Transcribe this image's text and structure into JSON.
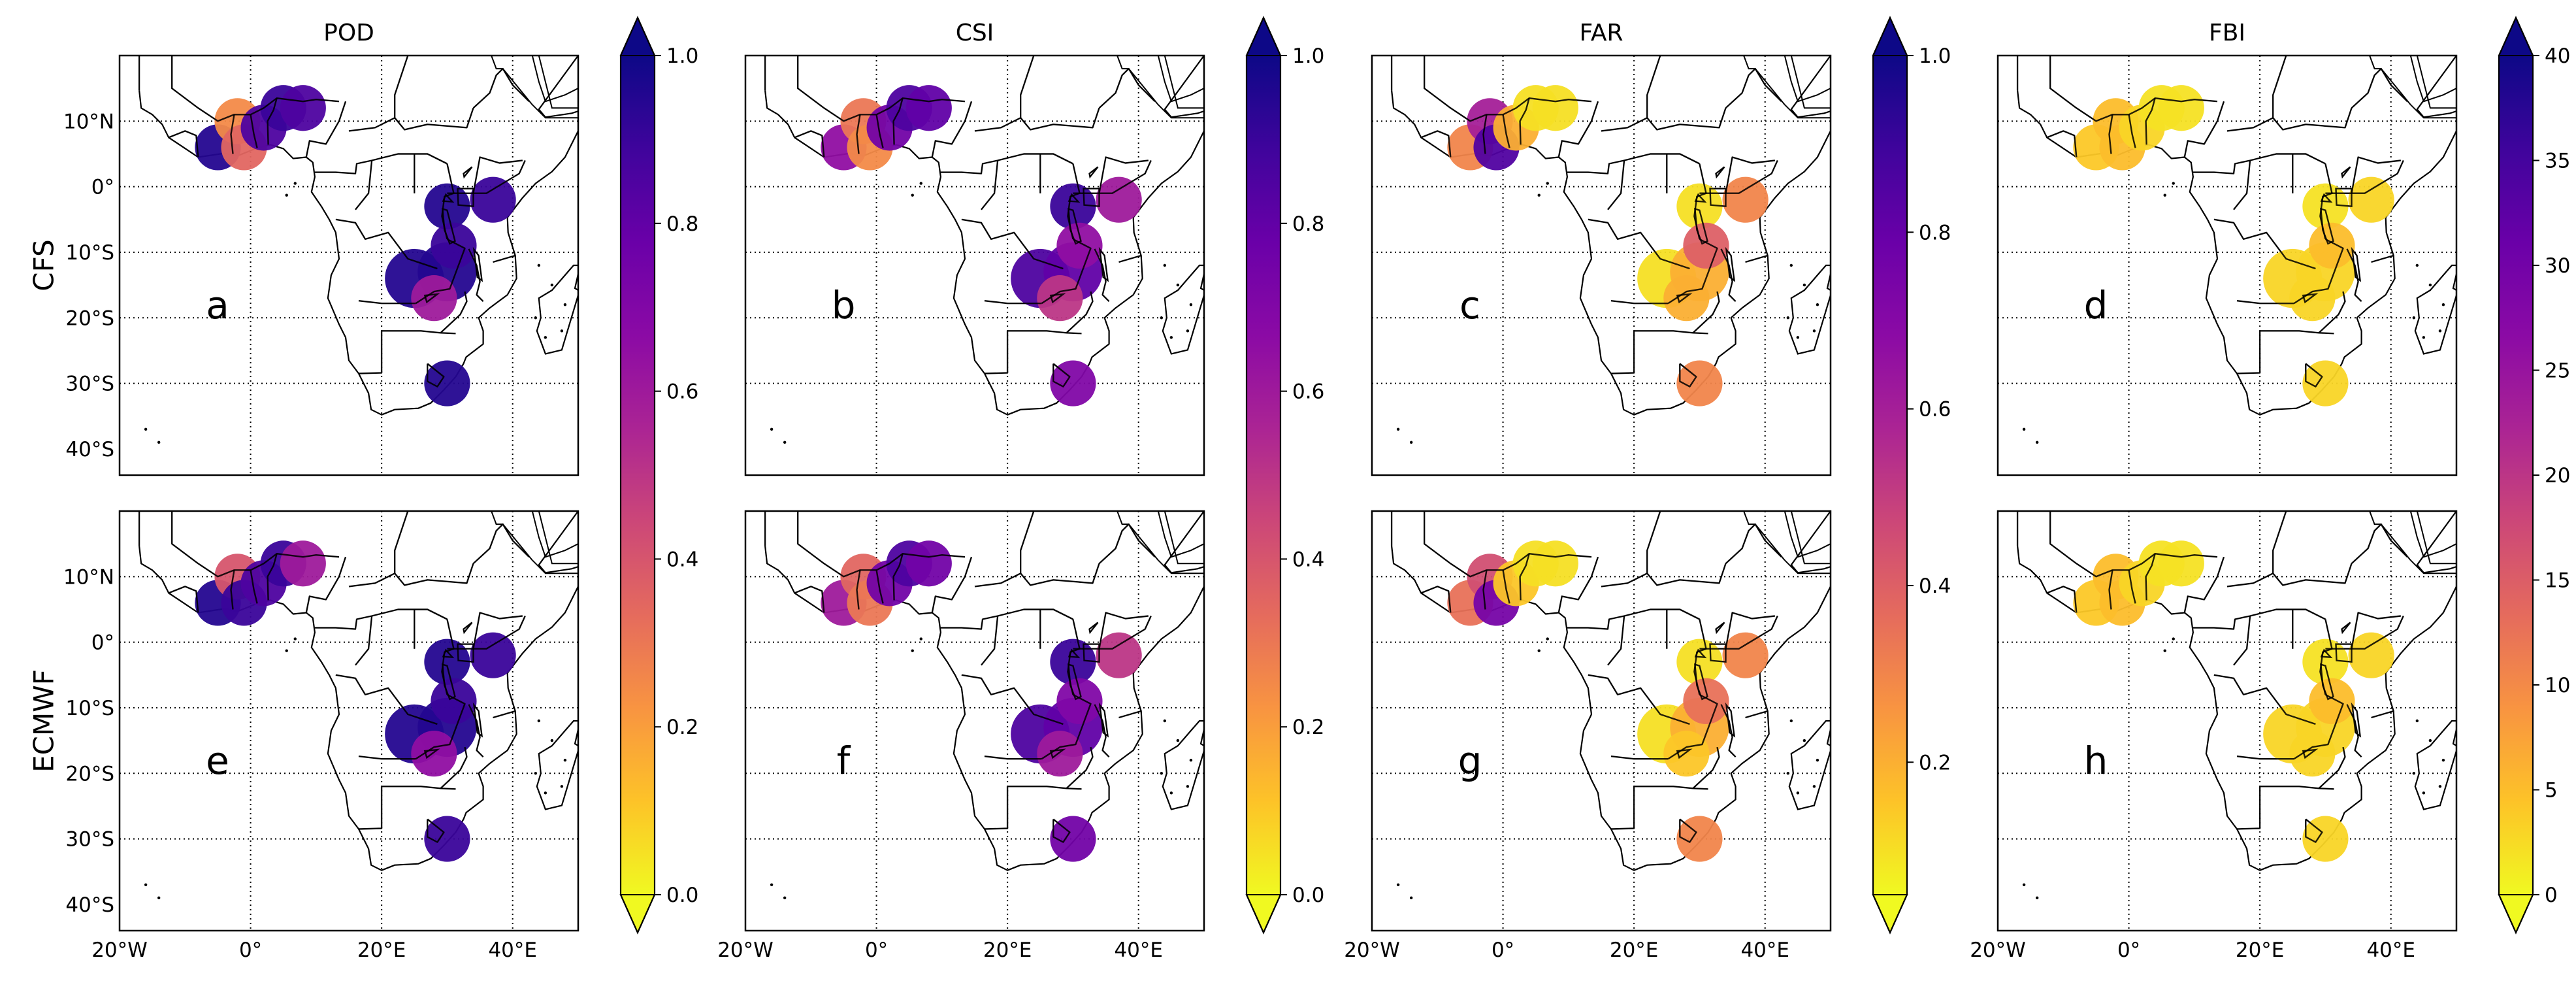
{
  "column_titles": [
    "POD",
    "CSI",
    "FAR",
    "FBI"
  ],
  "row_labels": [
    "CFS",
    "ECMWF"
  ],
  "panel_letters": [
    [
      "a",
      "b",
      "c",
      "d"
    ],
    [
      "e",
      "f",
      "g",
      "h"
    ]
  ],
  "lat_ticks": [
    "10°N",
    "0°",
    "10°S",
    "20°S",
    "30°S",
    "40°S"
  ],
  "lon_ticks": [
    "20°W",
    "0°",
    "20°E",
    "40°E"
  ],
  "colorbars": [
    {
      "ticks": [
        "1.0",
        "0.8",
        "0.6",
        "0.4",
        "0.2",
        "0.0"
      ],
      "vmin": 0,
      "vmax": 1
    },
    {
      "ticks": [
        "1.0",
        "0.8",
        "0.6",
        "0.4",
        "0.2",
        "0.0"
      ],
      "vmin": 0,
      "vmax": 1
    },
    {
      "ticks": [
        "1.0",
        "0.8",
        "0.6",
        "0.4",
        "0.2"
      ],
      "vmin": 0.05,
      "vmax": 1
    },
    {
      "ticks": [
        "40",
        "35",
        "30",
        "25",
        "20",
        "15",
        "10",
        "5",
        "0"
      ],
      "vmin": 0,
      "vmax": 40
    }
  ],
  "colormap": [
    "#f0f921",
    "#fdc328",
    "#f89441",
    "#e56b5d",
    "#cc4778",
    "#ab2494",
    "#8b0aa5",
    "#6a00a8",
    "#3f049c",
    "#0d0887"
  ],
  "sites": [
    {
      "lon": -5,
      "lat": 6,
      "r": 3.5
    },
    {
      "lon": -2,
      "lat": 10,
      "r": 3.5
    },
    {
      "lon": -1,
      "lat": 6,
      "r": 3.5
    },
    {
      "lon": 2,
      "lat": 9,
      "r": 3.5
    },
    {
      "lon": 5,
      "lat": 12,
      "r": 3.5
    },
    {
      "lon": 8,
      "lat": 12,
      "r": 3.5
    },
    {
      "lon": 30,
      "lat": -3,
      "r": 3.5
    },
    {
      "lon": 37,
      "lat": -2,
      "r": 3.5
    },
    {
      "lon": 25,
      "lat": -14,
      "r": 4.5
    },
    {
      "lon": 30,
      "lat": -13,
      "r": 4.5
    },
    {
      "lon": 31,
      "lat": -9,
      "r": 3.5
    },
    {
      "lon": 28,
      "lat": -17,
      "r": 3.5
    },
    {
      "lon": 30,
      "lat": -30,
      "r": 3.5
    }
  ],
  "panel_values": {
    "a": [
      0.95,
      0.25,
      0.35,
      0.85,
      0.9,
      0.85,
      0.95,
      0.9,
      0.95,
      0.95,
      0.9,
      0.6,
      0.95
    ],
    "b": [
      0.65,
      0.3,
      0.25,
      0.75,
      0.85,
      0.8,
      0.9,
      0.6,
      0.85,
      0.8,
      0.65,
      0.5,
      0.7
    ],
    "c": [
      0.3,
      0.6,
      0.85,
      0.2,
      0.1,
      0.1,
      0.1,
      0.3,
      0.1,
      0.2,
      0.4,
      0.2,
      0.3
    ],
    "d": [
      4,
      5,
      5,
      3,
      2,
      2,
      2,
      3,
      3,
      3,
      5,
      3,
      3
    ],
    "e": [
      0.95,
      0.4,
      0.9,
      0.85,
      0.9,
      0.6,
      0.95,
      0.9,
      0.95,
      0.95,
      0.9,
      0.65,
      0.9
    ],
    "f": [
      0.6,
      0.35,
      0.3,
      0.75,
      0.85,
      0.75,
      0.9,
      0.5,
      0.85,
      0.8,
      0.7,
      0.6,
      0.75
    ],
    "g": [
      0.35,
      0.45,
      0.75,
      0.15,
      0.1,
      0.1,
      0.1,
      0.3,
      0.1,
      0.2,
      0.35,
      0.15,
      0.3
    ],
    "h": [
      4,
      5,
      5,
      3,
      2,
      2,
      2,
      3,
      3,
      3,
      5,
      3,
      3
    ]
  }
}
